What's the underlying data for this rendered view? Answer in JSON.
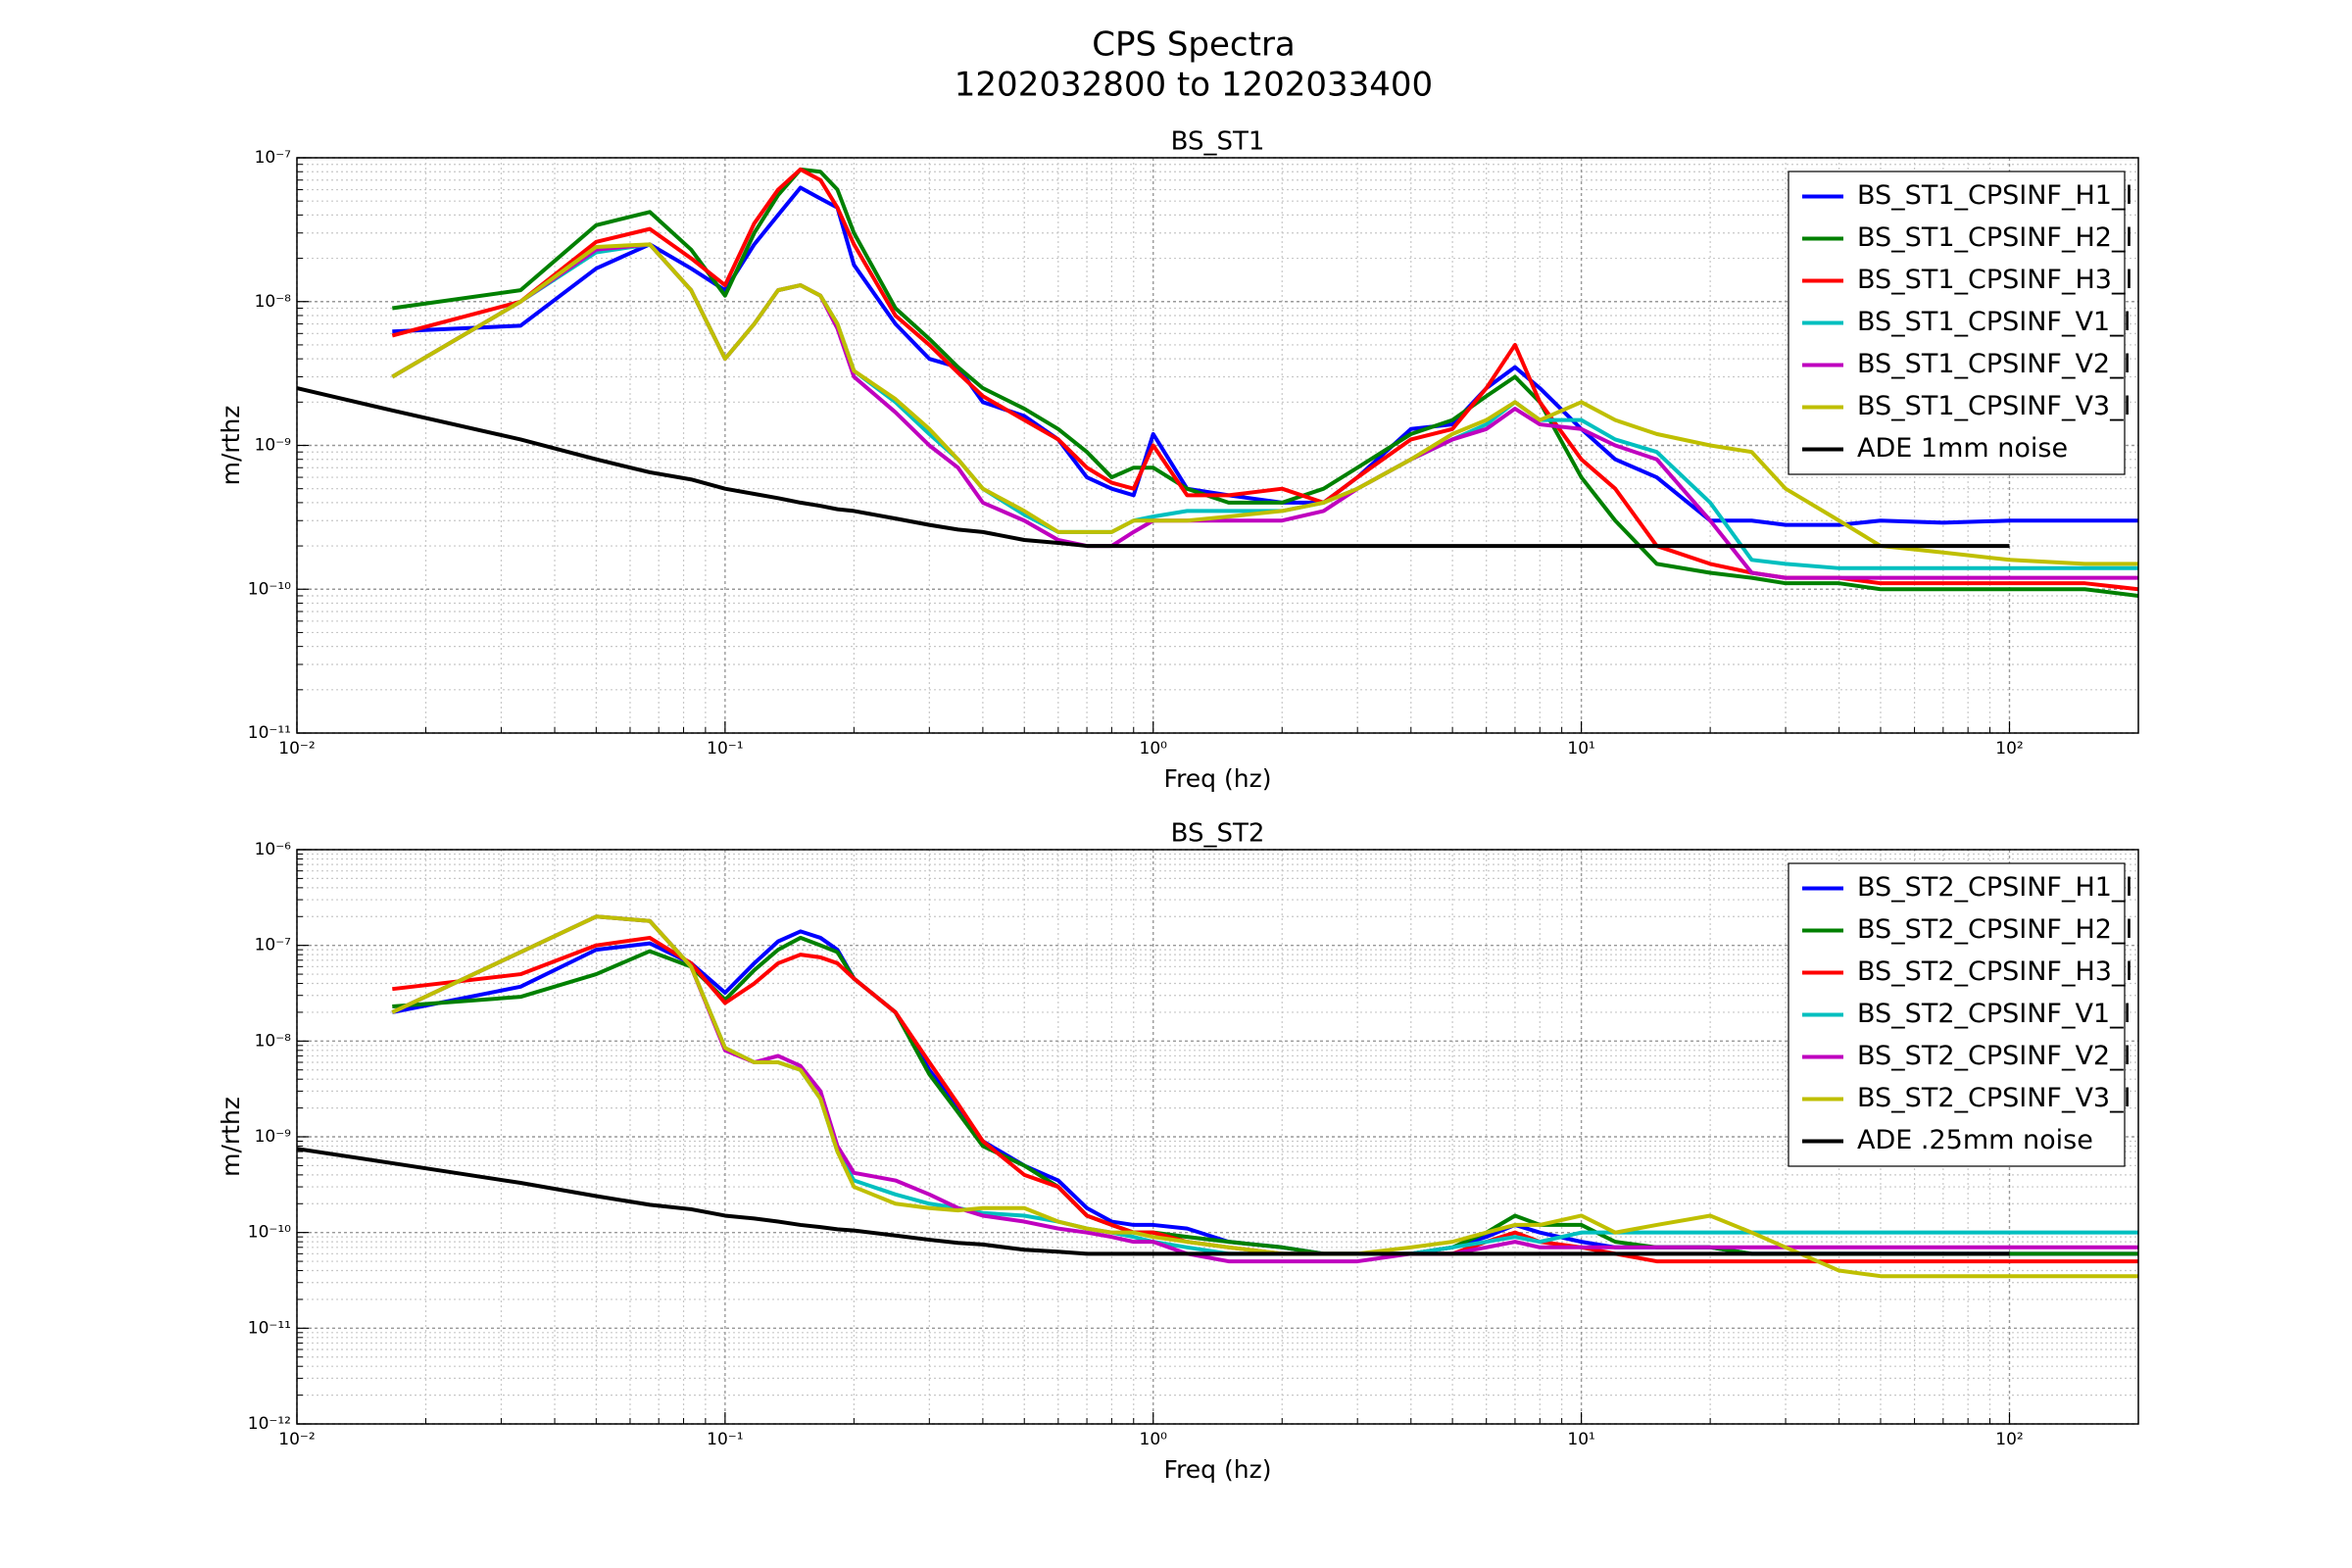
{
  "title": [
    "CPS Spectra",
    "1202032800 to 1202033400"
  ],
  "chart_data": [
    {
      "type": "line",
      "title": "BS_ST1",
      "xlabel": "Freq (hz)",
      "ylabel": "m/rthz",
      "xscale": "log",
      "yscale": "log",
      "grid": true,
      "legend": "upper right",
      "xlim": [
        0.01,
        200
      ],
      "ylim": [
        1e-11,
        1e-07
      ],
      "xticks": [
        {
          "value": 0.01,
          "label": "10⁻²"
        },
        {
          "value": 0.1,
          "label": "10⁻¹"
        },
        {
          "value": 1,
          "label": "10⁰"
        },
        {
          "value": 10,
          "label": "10¹"
        },
        {
          "value": 100,
          "label": "10²"
        }
      ],
      "yticks": [
        {
          "value": 1e-11,
          "label": "10⁻¹¹"
        },
        {
          "value": 1e-10,
          "label": "10⁻¹⁰"
        },
        {
          "value": 1e-09,
          "label": "10⁻⁹"
        },
        {
          "value": 1e-08,
          "label": "10⁻⁸"
        },
        {
          "value": 1e-07,
          "label": "10⁻⁷"
        }
      ],
      "x": [
        0.01,
        0.0167,
        0.0333,
        0.05,
        0.0667,
        0.0833,
        0.1,
        0.117,
        0.133,
        0.15,
        0.167,
        0.183,
        0.2,
        0.25,
        0.3,
        0.35,
        0.4,
        0.5,
        0.6,
        0.7,
        0.8,
        0.9,
        1,
        1.2,
        1.5,
        2,
        2.5,
        3,
        4,
        5,
        6,
        7,
        8,
        10,
        12,
        15,
        20,
        25,
        30,
        40,
        50,
        70,
        100,
        150,
        200
      ],
      "series": [
        {
          "name": "BS_ST1_CPSINF_H1_I",
          "color": "#0000ff",
          "values": [
            null,
            6.2e-09,
            6.8e-09,
            1.7e-08,
            2.5e-08,
            1.7e-08,
            1.2e-08,
            2.5e-08,
            4e-08,
            6.2e-08,
            5.2e-08,
            4.5e-08,
            1.8e-08,
            7e-09,
            4e-09,
            3.5e-09,
            2e-09,
            1.6e-09,
            1.1e-09,
            6e-10,
            5e-10,
            4.5e-10,
            1.2e-09,
            5e-10,
            4.5e-10,
            4e-10,
            4e-10,
            6e-10,
            1.3e-09,
            1.4e-09,
            2.5e-09,
            3.5e-09,
            2.5e-09,
            1.3e-09,
            8e-10,
            6e-10,
            3e-10,
            3e-10,
            2.8e-10,
            2.8e-10,
            3e-10,
            2.9e-10,
            3e-10,
            3e-10,
            3e-10
          ]
        },
        {
          "name": "BS_ST1_CPSINF_H2_I",
          "color": "#008000",
          "values": [
            null,
            9e-09,
            1.2e-08,
            3.4e-08,
            4.2e-08,
            2.3e-08,
            1.1e-08,
            3e-08,
            5.5e-08,
            8.3e-08,
            8e-08,
            6e-08,
            3e-08,
            9e-09,
            5.5e-09,
            3.5e-09,
            2.5e-09,
            1.8e-09,
            1.3e-09,
            9e-10,
            6e-10,
            7e-10,
            7e-10,
            5e-10,
            4e-10,
            4e-10,
            5e-10,
            7e-10,
            1.2e-09,
            1.5e-09,
            2.2e-09,
            3e-09,
            2e-09,
            6e-10,
            3e-10,
            1.5e-10,
            1.3e-10,
            1.2e-10,
            1.1e-10,
            1.1e-10,
            1e-10,
            1e-10,
            1e-10,
            1e-10,
            9e-11
          ]
        },
        {
          "name": "BS_ST1_CPSINF_H3_I",
          "color": "#ff0000",
          "values": [
            null,
            5.8e-09,
            1e-08,
            2.6e-08,
            3.2e-08,
            2e-08,
            1.3e-08,
            3.5e-08,
            6e-08,
            8.3e-08,
            7e-08,
            4.5e-08,
            2.5e-08,
            8e-09,
            5e-09,
            3.2e-09,
            2.2e-09,
            1.5e-09,
            1.1e-09,
            7e-10,
            5.5e-10,
            5e-10,
            1e-09,
            4.5e-10,
            4.5e-10,
            5e-10,
            4e-10,
            6e-10,
            1.1e-09,
            1.3e-09,
            2.5e-09,
            5e-09,
            2e-09,
            8e-10,
            5e-10,
            2e-10,
            1.5e-10,
            1.3e-10,
            1.2e-10,
            1.2e-10,
            1.1e-10,
            1.1e-10,
            1.1e-10,
            1.1e-10,
            1e-10
          ]
        },
        {
          "name": "BS_ST1_CPSINF_V1_I",
          "color": "#00bfbf",
          "values": [
            null,
            3e-09,
            1e-08,
            2.2e-08,
            2.5e-08,
            1.2e-08,
            4e-09,
            7e-09,
            1.2e-08,
            1.3e-08,
            1.1e-08,
            7e-09,
            3.3e-09,
            2e-09,
            1.2e-09,
            8e-10,
            5e-10,
            3.3e-10,
            2.5e-10,
            2.5e-10,
            2.5e-10,
            3e-10,
            3.2e-10,
            3.5e-10,
            3.5e-10,
            3.5e-10,
            4e-10,
            5e-10,
            8e-10,
            1.1e-09,
            1.4e-09,
            2e-09,
            1.5e-09,
            1.5e-09,
            1.1e-09,
            9e-10,
            4e-10,
            1.6e-10,
            1.5e-10,
            1.4e-10,
            1.4e-10,
            1.4e-10,
            1.4e-10,
            1.4e-10,
            1.4e-10
          ]
        },
        {
          "name": "BS_ST1_CPSINF_V2_I",
          "color": "#bf00bf",
          "values": [
            null,
            3e-09,
            1e-08,
            2.3e-08,
            2.5e-08,
            1.2e-08,
            4e-09,
            7e-09,
            1.2e-08,
            1.3e-08,
            1.1e-08,
            6.5e-09,
            3e-09,
            1.7e-09,
            1e-09,
            7e-10,
            4e-10,
            3e-10,
            2.2e-10,
            2e-10,
            2e-10,
            2.5e-10,
            3e-10,
            3e-10,
            3e-10,
            3e-10,
            3.5e-10,
            5e-10,
            8e-10,
            1.1e-09,
            1.3e-09,
            1.8e-09,
            1.4e-09,
            1.3e-09,
            1e-09,
            8e-10,
            3e-10,
            1.3e-10,
            1.2e-10,
            1.2e-10,
            1.2e-10,
            1.2e-10,
            1.2e-10,
            1.2e-10,
            1.2e-10
          ]
        },
        {
          "name": "BS_ST1_CPSINF_V3_I",
          "color": "#bfbf00",
          "values": [
            null,
            3e-09,
            1e-08,
            2.4e-08,
            2.5e-08,
            1.2e-08,
            4e-09,
            7e-09,
            1.2e-08,
            1.3e-08,
            1.1e-08,
            7e-09,
            3.3e-09,
            2.1e-09,
            1.3e-09,
            8e-10,
            5e-10,
            3.5e-10,
            2.5e-10,
            2.5e-10,
            2.5e-10,
            3e-10,
            3e-10,
            3e-10,
            3.2e-10,
            3.5e-10,
            4e-10,
            5e-10,
            8e-10,
            1.2e-09,
            1.5e-09,
            2e-09,
            1.5e-09,
            2e-09,
            1.5e-09,
            1.2e-09,
            1e-09,
            9e-10,
            5e-10,
            3e-10,
            2e-10,
            1.8e-10,
            1.6e-10,
            1.5e-10,
            1.5e-10
          ]
        },
        {
          "name": "ADE 1mm noise",
          "color": "#000000",
          "values": [
            2.5e-09,
            1.75e-09,
            1.1e-09,
            8e-10,
            6.5e-10,
            5.8e-10,
            5e-10,
            4.6e-10,
            4.3e-10,
            4e-10,
            3.8e-10,
            3.6e-10,
            3.5e-10,
            3.1e-10,
            2.8e-10,
            2.6e-10,
            2.5e-10,
            2.2e-10,
            2.1e-10,
            2e-10,
            2e-10,
            2e-10,
            2e-10,
            2e-10,
            2e-10,
            2e-10,
            2e-10,
            2e-10,
            2e-10,
            2e-10,
            2e-10,
            2e-10,
            2e-10,
            2e-10,
            2e-10,
            2e-10,
            2e-10,
            2e-10,
            2e-10,
            2e-10,
            2e-10,
            2e-10,
            2e-10,
            null,
            null
          ]
        }
      ]
    },
    {
      "type": "line",
      "title": "BS_ST2",
      "xlabel": "Freq (hz)",
      "ylabel": "m/rthz",
      "xscale": "log",
      "yscale": "log",
      "grid": true,
      "legend": "upper right",
      "xlim": [
        0.01,
        200
      ],
      "ylim": [
        1e-12,
        1e-06
      ],
      "xticks": [
        {
          "value": 0.01,
          "label": "10⁻²"
        },
        {
          "value": 0.1,
          "label": "10⁻¹"
        },
        {
          "value": 1,
          "label": "10⁰"
        },
        {
          "value": 10,
          "label": "10¹"
        },
        {
          "value": 100,
          "label": "10²"
        }
      ],
      "yticks": [
        {
          "value": 1e-12,
          "label": "10⁻¹²"
        },
        {
          "value": 1e-11,
          "label": "10⁻¹¹"
        },
        {
          "value": 1e-10,
          "label": "10⁻¹⁰"
        },
        {
          "value": 1e-09,
          "label": "10⁻⁹"
        },
        {
          "value": 1e-08,
          "label": "10⁻⁸"
        },
        {
          "value": 1e-07,
          "label": "10⁻⁷"
        },
        {
          "value": 1e-06,
          "label": "10⁻⁶"
        }
      ],
      "x": [
        0.01,
        0.0167,
        0.0333,
        0.05,
        0.0667,
        0.0833,
        0.1,
        0.117,
        0.133,
        0.15,
        0.167,
        0.183,
        0.2,
        0.25,
        0.3,
        0.35,
        0.4,
        0.5,
        0.6,
        0.7,
        0.8,
        0.9,
        1,
        1.2,
        1.5,
        2,
        2.5,
        3,
        4,
        5,
        6,
        7,
        8,
        10,
        12,
        15,
        20,
        25,
        30,
        40,
        50,
        70,
        100,
        150,
        200
      ],
      "series": [
        {
          "name": "BS_ST2_CPSINF_H1_I",
          "color": "#0000ff",
          "values": [
            null,
            2e-08,
            3.7e-08,
            9e-08,
            1.05e-07,
            6.5e-08,
            3.2e-08,
            6.5e-08,
            1.1e-07,
            1.4e-07,
            1.2e-07,
            9e-08,
            4.5e-08,
            2e-08,
            5e-09,
            2e-09,
            9e-10,
            5e-10,
            3.5e-10,
            1.8e-10,
            1.3e-10,
            1.2e-10,
            1.2e-10,
            1.1e-10,
            8e-11,
            7e-11,
            6e-11,
            6e-11,
            6e-11,
            7e-11,
            9e-11,
            1.2e-10,
            1e-10,
            8e-11,
            7e-11,
            7e-11,
            7e-11,
            6e-11,
            6e-11,
            6e-11,
            6e-11,
            6e-11,
            6e-11,
            6e-11,
            6e-11
          ]
        },
        {
          "name": "BS_ST2_CPSINF_H2_I",
          "color": "#008000",
          "values": [
            null,
            2.3e-08,
            2.9e-08,
            5e-08,
            8.7e-08,
            6e-08,
            2.7e-08,
            5.5e-08,
            9e-08,
            1.2e-07,
            1e-07,
            8.5e-08,
            4.5e-08,
            2e-08,
            4.5e-09,
            1.8e-09,
            8e-10,
            5e-10,
            3e-10,
            1.5e-10,
            1.2e-10,
            1e-10,
            1e-10,
            9e-11,
            8e-11,
            7e-11,
            6e-11,
            6e-11,
            6e-11,
            7e-11,
            1e-10,
            1.5e-10,
            1.2e-10,
            1.2e-10,
            8e-11,
            7e-11,
            7e-11,
            6e-11,
            6e-11,
            6e-11,
            6e-11,
            6e-11,
            6e-11,
            6e-11,
            6e-11
          ]
        },
        {
          "name": "BS_ST2_CPSINF_H3_I",
          "color": "#ff0000",
          "values": [
            null,
            3.5e-08,
            5e-08,
            1e-07,
            1.2e-07,
            6.5e-08,
            2.5e-08,
            4e-08,
            6.5e-08,
            8e-08,
            7.5e-08,
            6.5e-08,
            4.5e-08,
            2e-08,
            6e-09,
            2.2e-09,
            9e-10,
            4e-10,
            3e-10,
            1.5e-10,
            1.2e-10,
            1e-10,
            1e-10,
            8e-11,
            7e-11,
            6e-11,
            6e-11,
            6e-11,
            6e-11,
            6e-11,
            8e-11,
            1e-10,
            8e-11,
            7e-11,
            6e-11,
            5e-11,
            5e-11,
            5e-11,
            5e-11,
            5e-11,
            5e-11,
            5e-11,
            5e-11,
            5e-11,
            5e-11
          ]
        },
        {
          "name": "BS_ST2_CPSINF_V1_I",
          "color": "#00bfbf",
          "values": [
            null,
            2e-08,
            8.5e-08,
            2e-07,
            1.8e-07,
            6e-08,
            8.5e-09,
            6e-09,
            6e-09,
            5e-09,
            2.5e-09,
            7e-10,
            3.5e-10,
            2.5e-10,
            2e-10,
            1.8e-10,
            1.6e-10,
            1.5e-10,
            1.3e-10,
            1.1e-10,
            1e-10,
            9e-11,
            8e-11,
            7e-11,
            6e-11,
            6e-11,
            6e-11,
            6e-11,
            6e-11,
            7e-11,
            8e-11,
            9e-11,
            8e-11,
            1e-10,
            1e-10,
            1e-10,
            1e-10,
            1e-10,
            1e-10,
            1e-10,
            1e-10,
            1e-10,
            1e-10,
            1e-10,
            1e-10
          ]
        },
        {
          "name": "BS_ST2_CPSINF_V2_I",
          "color": "#bf00bf",
          "values": [
            null,
            2e-08,
            8.5e-08,
            2e-07,
            1.8e-07,
            6e-08,
            8e-09,
            6e-09,
            7e-09,
            5.5e-09,
            3e-09,
            8e-10,
            4.2e-10,
            3.5e-10,
            2.5e-10,
            1.8e-10,
            1.5e-10,
            1.3e-10,
            1.1e-10,
            1e-10,
            9e-11,
            8e-11,
            8e-11,
            6e-11,
            5e-11,
            5e-11,
            5e-11,
            5e-11,
            6e-11,
            6e-11,
            7e-11,
            8e-11,
            7e-11,
            7e-11,
            7e-11,
            7e-11,
            7e-11,
            7e-11,
            7e-11,
            7e-11,
            7e-11,
            7e-11,
            7e-11,
            7e-11,
            7e-11
          ]
        },
        {
          "name": "BS_ST2_CPSINF_V3_I",
          "color": "#bfbf00",
          "values": [
            null,
            2e-08,
            8.5e-08,
            2e-07,
            1.8e-07,
            6e-08,
            8.5e-09,
            6e-09,
            6e-09,
            5e-09,
            2.5e-09,
            7e-10,
            3e-10,
            2e-10,
            1.8e-10,
            1.7e-10,
            1.8e-10,
            1.8e-10,
            1.3e-10,
            1.1e-10,
            1e-10,
            1e-10,
            9e-11,
            8e-11,
            7e-11,
            6e-11,
            6e-11,
            6e-11,
            7e-11,
            8e-11,
            1e-10,
            1.2e-10,
            1.2e-10,
            1.5e-10,
            1e-10,
            1.2e-10,
            1.5e-10,
            1e-10,
            7e-11,
            4e-11,
            3.5e-11,
            3.5e-11,
            3.5e-11,
            3.5e-11,
            3.5e-11
          ]
        },
        {
          "name": "ADE .25mm noise",
          "color": "#000000",
          "values": [
            7.5e-10,
            5.3e-10,
            3.3e-10,
            2.4e-10,
            1.95e-10,
            1.75e-10,
            1.5e-10,
            1.4e-10,
            1.3e-10,
            1.2e-10,
            1.14e-10,
            1.08e-10,
            1.05e-10,
            9.3e-11,
            8.4e-11,
            7.8e-11,
            7.5e-11,
            6.6e-11,
            6.3e-11,
            6e-11,
            6e-11,
            6e-11,
            6e-11,
            6e-11,
            6e-11,
            6e-11,
            6e-11,
            6e-11,
            6e-11,
            6e-11,
            6e-11,
            6e-11,
            6e-11,
            6e-11,
            6e-11,
            6e-11,
            6e-11,
            6e-11,
            6e-11,
            6e-11,
            6e-11,
            6e-11,
            6e-11,
            null,
            null
          ]
        }
      ]
    }
  ]
}
